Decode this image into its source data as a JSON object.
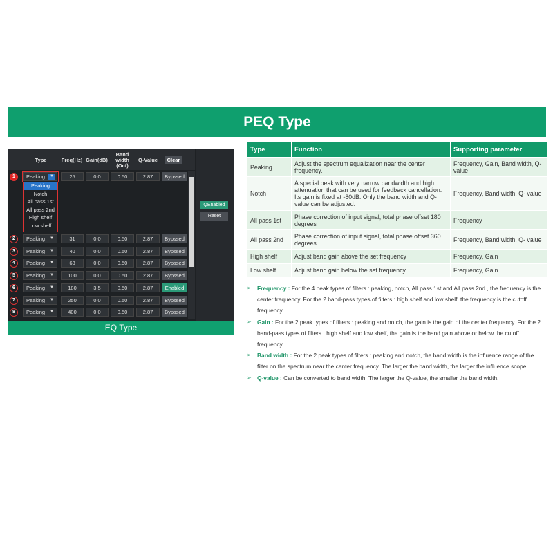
{
  "banner_title": "PEQ Type",
  "eq_panel": {
    "headers": {
      "type": "Type",
      "freq": "Freq(Hz)",
      "gain": "Gain(dB)",
      "bw": "Band width (Oct)",
      "q": "Q-Value",
      "clear": "Clear"
    },
    "rows": [
      {
        "n": "1",
        "type": "Peaking",
        "freq": "25",
        "gain": "0.0",
        "bw": "0.50",
        "q": "2.87",
        "status": "Bypssed"
      },
      {
        "n": "2",
        "type": "Peaking",
        "freq": "31",
        "gain": "0.0",
        "bw": "0.50",
        "q": "2.87",
        "status": "Bypssed"
      },
      {
        "n": "3",
        "type": "Peaking",
        "freq": "40",
        "gain": "0.0",
        "bw": "0.50",
        "q": "2.87",
        "status": "Bypssed"
      },
      {
        "n": "4",
        "type": "Peaking",
        "freq": "63",
        "gain": "0.0",
        "bw": "0.50",
        "q": "2.87",
        "status": "Bypssed"
      },
      {
        "n": "5",
        "type": "Peaking",
        "freq": "100",
        "gain": "0.0",
        "bw": "0.50",
        "q": "2.87",
        "status": "Bypssed"
      },
      {
        "n": "6",
        "type": "Peaking",
        "freq": "180",
        "gain": "3.5",
        "bw": "0.50",
        "q": "2.87",
        "status": "Enabled"
      },
      {
        "n": "7",
        "type": "Peaking",
        "freq": "250",
        "gain": "0.0",
        "bw": "0.50",
        "q": "2.87",
        "status": "Bypssed"
      },
      {
        "n": "8",
        "type": "Peaking",
        "freq": "400",
        "gain": "0.0",
        "bw": "0.50",
        "q": "2.87",
        "status": "Bypssed"
      }
    ],
    "dropdown_options": [
      "Peaking",
      "Notch",
      "All pass 1st",
      "All pass 2nd",
      "High shelf",
      "Low shelf"
    ],
    "dropdown_selected": "Peaking",
    "qenabled_label": "QEnabled",
    "reset_label": "Reset",
    "caption": "EQ Type"
  },
  "type_table": {
    "headers": [
      "Type",
      "Function",
      "Supporting parameter"
    ],
    "rows": [
      [
        "Peaking",
        "Adjust the spectrum equalization near the center frequency.",
        "Frequency, Gain, Band width, Q- value"
      ],
      [
        "Notch",
        "A special peak with very narrow bandwidth and high attenuation that can be used for feedback cancellation. Its gain is fixed at -80dB. Only the band width and Q- value can be adjusted.",
        "Frequency, Band width, Q- value"
      ],
      [
        "All pass 1st",
        "Phase correction of input signal, total phase offset 180 degrees",
        "Frequency"
      ],
      [
        "All pass 2nd",
        "Phase correction of input signal, total phase offset 360 degrees",
        "Frequency, Band width, Q- value"
      ],
      [
        "High shelf",
        "Adjust band gain above the set frequency",
        "Frequency, Gain"
      ],
      [
        "Low shelf",
        "Adjust band gain below the set frequency",
        "Frequency, Gain"
      ]
    ]
  },
  "notes": [
    {
      "key": "Frequency :",
      "text": " For the 4 peak types of filters : peaking, notch, All pass 1st and All pass 2nd , the frequency is the center frequency. For the 2 band-pass types of filters : high shelf and low shelf, the frequency is the cutoff frequency."
    },
    {
      "key": "Gain :",
      "text": " For the 2 peak types of filters : peaking and  notch, the gain is the gain of the center frequency. For the 2 band-pass types of filters : high shelf and low shelf, the gain is the band gain above or below the cutoff frequency."
    },
    {
      "key": "Band width :",
      "text": " For the 2 peak types of filters : peaking and  notch, the band width is the influence range of the filter on the spectrum near the center frequency. The larger the band width, the larger the influence scope."
    },
    {
      "key": "Q-value :",
      "text": " Can be converted to band width. The larger the Q-value, the smaller the band width."
    }
  ],
  "colors": {
    "brand_green": "#0f9f6e",
    "enabled": "#2b9a78",
    "highlight_red": "#dd3333",
    "selected_blue": "#2874c8"
  }
}
